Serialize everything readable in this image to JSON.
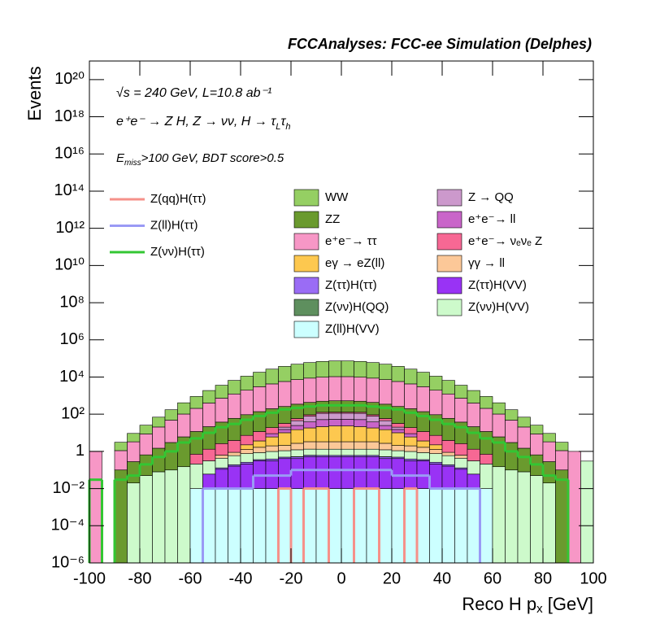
{
  "chart_data": {
    "type": "stacked_histogram",
    "title": "FCCAnalyses: FCC-ee Simulation (Delphes)",
    "lumi_text": "√s = 240 GeV, L=10.8 ab⁻¹",
    "process_text": [
      "e⁺e⁻ → Z H, Z → νν, H → τ",
      "L",
      "τ",
      "h"
    ],
    "cut_text": [
      "E",
      "miss",
      ">100 GeV, BDT score>0.5"
    ],
    "x_label": [
      "Reco H p",
      "x",
      " [GeV]"
    ],
    "y_label": "Events",
    "log_y": true,
    "grid": false,
    "xlim": [
      -100,
      100
    ],
    "xticks": [
      -100,
      -80,
      -60,
      -40,
      -20,
      0,
      20,
      40,
      60,
      80,
      100
    ],
    "ylim": [
      1e-06,
      1e+21
    ],
    "yticks": [
      {
        "value": 1e-06,
        "label": "10⁻⁶"
      },
      {
        "value": 0.0001,
        "label": "10⁻⁴"
      },
      {
        "value": 0.01,
        "label": "10⁻²"
      },
      1,
      {
        "value": 100,
        "label": "10²"
      },
      {
        "value": 10000,
        "label": "10⁴"
      },
      {
        "value": 1000000.0,
        "label": "10⁶"
      },
      {
        "value": 100000000.0,
        "label": "10⁸"
      },
      {
        "value": 10000000000.0,
        "label": "10¹⁰"
      },
      {
        "value": 1000000000000.0,
        "label": "10¹²"
      },
      {
        "value": 100000000000000.0,
        "label": "10¹⁴"
      },
      {
        "value": 1e+16,
        "label": "10¹⁶"
      },
      {
        "value": 1e+18,
        "label": "10¹⁸"
      },
      {
        "value": 1e+20,
        "label": "10²⁰"
      }
    ],
    "bins": [
      -100,
      -95,
      -90,
      -85,
      -80,
      -75,
      -70,
      -65,
      -60,
      -55,
      -50,
      -45,
      -40,
      -35,
      -30,
      -25,
      -20,
      -15,
      -10,
      -5,
      0,
      5,
      10,
      15,
      20,
      25,
      30,
      35,
      40,
      45,
      50,
      55,
      60,
      65,
      70,
      75,
      80,
      85,
      90,
      95,
      100
    ],
    "series": [
      {
        "name": "WW",
        "color": "#95cf63",
        "values": [
          0,
          0,
          2,
          6,
          17,
          49,
          126,
          309,
          692,
          1480,
          2890,
          5370,
          9120,
          15100,
          22400,
          31600,
          41700,
          51300,
          58900,
          63100,
          63100,
          58900,
          51300,
          41700,
          31600,
          22400,
          15100,
          9120,
          5370,
          2890,
          1480,
          692,
          309,
          126,
          49,
          17,
          6,
          2,
          0,
          0
        ]
      },
      {
        "name": "ZZ",
        "color": "#6a9a2e",
        "values": [
          0,
          0,
          0.1,
          0.26,
          0.6,
          1.4,
          2.9,
          5.9,
          11,
          20,
          35,
          56,
          87,
          126,
          178,
          229,
          288,
          339,
          372,
          398,
          398,
          372,
          339,
          288,
          229,
          178,
          126,
          87,
          56,
          35,
          20,
          11,
          5.9,
          2.9,
          1.4,
          0.6,
          0.26,
          0.1,
          0,
          0
        ]
      },
      {
        "name": "e⁺e⁻→ ττ",
        "color": "#f797c6",
        "values": [
          1,
          0,
          1,
          3,
          8,
          19,
          45,
          96,
          195,
          380,
          692,
          1170,
          1860,
          2880,
          4070,
          5500,
          6920,
          8320,
          9330,
          10000,
          10000,
          9330,
          8320,
          6920,
          5500,
          4070,
          2880,
          1860,
          1170,
          692,
          380,
          195,
          96,
          45,
          19,
          8,
          3,
          1,
          1,
          0
        ]
      },
      {
        "name": "eγ → eZ(ll)",
        "color": "#fdc84f",
        "values": [
          0,
          0,
          0,
          0,
          0,
          0,
          0,
          0,
          0,
          0,
          0,
          0,
          1,
          2,
          4,
          8,
          12,
          15,
          18,
          20,
          20,
          18,
          15,
          12,
          8,
          4,
          2,
          1,
          0,
          0,
          0,
          0,
          0,
          0,
          0,
          0,
          0,
          0,
          0,
          0
        ]
      },
      {
        "name": "Z(ττ)H(ττ)",
        "color": "#9a6cf5",
        "values": [
          0,
          0,
          0,
          0,
          0,
          0,
          0,
          0,
          0,
          0,
          0.02,
          0.03,
          0.05,
          0.05,
          0.08,
          0.08,
          0.1,
          0.1,
          0.1,
          0.1,
          0.1,
          0.1,
          0.1,
          0.1,
          0.08,
          0.08,
          0.05,
          0.05,
          0.03,
          0.02,
          0,
          0,
          0,
          0,
          0,
          0,
          0,
          0,
          0,
          0
        ]
      },
      {
        "name": "Z(νν)H(QQ)",
        "color": "#5e8f5e",
        "values": [
          0,
          0,
          0,
          0,
          0,
          0,
          0,
          0,
          0,
          0,
          0,
          0,
          0,
          0,
          0,
          0,
          0.01,
          0.01,
          0,
          0,
          0,
          0,
          0,
          0.01,
          0,
          0,
          0,
          0,
          0,
          0,
          0,
          0,
          0,
          0,
          0,
          0,
          0,
          0,
          0,
          0
        ]
      },
      {
        "name": "Z(ll)H(VV)",
        "color": "#ccffff",
        "values": [
          0,
          0,
          0,
          0,
          0,
          0,
          0,
          0,
          0.01,
          0.01,
          0.01,
          0.01,
          0.01,
          0.01,
          0.01,
          0.01,
          0.01,
          0.01,
          0.01,
          0.01,
          0.01,
          0.01,
          0.01,
          0.01,
          0.01,
          0.01,
          0.01,
          0.01,
          0.01,
          0.01,
          0.01,
          0.01,
          0,
          0,
          0,
          0,
          0,
          0,
          0,
          0
        ]
      },
      {
        "name": "Z → QQ",
        "color": "#cc99cc",
        "values": [
          0,
          0,
          0,
          0,
          0,
          0,
          0,
          0,
          0,
          0,
          0,
          0,
          0,
          0,
          0,
          5,
          20,
          40,
          60,
          60,
          60,
          60,
          40,
          20,
          5,
          0,
          0,
          0,
          0,
          0,
          0,
          0,
          0,
          0,
          0,
          0,
          0,
          0,
          0,
          0
        ]
      },
      {
        "name": "e⁺e⁻→ ll",
        "color": "#c965c9",
        "values": [
          0,
          0,
          0,
          0,
          0,
          0,
          0,
          0,
          0,
          0,
          0,
          0,
          0,
          0,
          3,
          5,
          10,
          20,
          30,
          30,
          30,
          30,
          20,
          10,
          5,
          3,
          0,
          0,
          0,
          0,
          0,
          0,
          0,
          0,
          0,
          0,
          0,
          0,
          0,
          0
        ]
      },
      {
        "name": "e⁺e⁻→ νₑνₑ Z",
        "color": "#f76894",
        "values": [
          0,
          0,
          0,
          0,
          0,
          0,
          0,
          0,
          0.5,
          1,
          2,
          3,
          5,
          8,
          10,
          12,
          14,
          15,
          16,
          16,
          16,
          16,
          15,
          14,
          12,
          10,
          8,
          5,
          3,
          2,
          1,
          0.5,
          0,
          0,
          0,
          0,
          0,
          0,
          0,
          0
        ]
      },
      {
        "name": "γγ → ll",
        "color": "#fcc898",
        "values": [
          0,
          0,
          0,
          0,
          0,
          0,
          0,
          0,
          0,
          0,
          0.2,
          0.3,
          0.5,
          0.8,
          1,
          1,
          1.5,
          2,
          2,
          2,
          2,
          2,
          2,
          1.5,
          1,
          1,
          0.8,
          0.5,
          0.3,
          0.2,
          0,
          0,
          0,
          0,
          0,
          0,
          0,
          0,
          0,
          0
        ]
      },
      {
        "name": "Z(ττ)H(VV)",
        "color": "#9933f5",
        "values": [
          0,
          0,
          0,
          0,
          0,
          0,
          0,
          0,
          0,
          0.05,
          0.1,
          0.15,
          0.2,
          0.3,
          0.3,
          0.4,
          0.4,
          0.5,
          0.5,
          0.5,
          0.5,
          0.5,
          0.5,
          0.4,
          0.4,
          0.3,
          0.3,
          0.2,
          0.15,
          0.1,
          0.05,
          0,
          0,
          0,
          0,
          0,
          0,
          0,
          0,
          0
        ]
      },
      {
        "name": "Z(νν)H(VV)",
        "color": "#cdfacb",
        "values": [
          0,
          0,
          0,
          0.02,
          0.05,
          0.08,
          0.1,
          0.15,
          0.2,
          0.25,
          0.3,
          0.4,
          0.5,
          0.5,
          0.6,
          0.6,
          0.7,
          0.7,
          0.7,
          0.7,
          0.7,
          0.7,
          0.7,
          0.7,
          0.6,
          0.6,
          0.5,
          0.5,
          0.4,
          0.3,
          0.25,
          0.2,
          0.15,
          0.1,
          0.08,
          0.05,
          0.02,
          0,
          0,
          0.3
        ]
      }
    ],
    "lines": [
      {
        "name": "Z(qq)H(ττ)",
        "color": "#f5918a",
        "values": [
          null,
          null,
          null,
          null,
          null,
          null,
          null,
          null,
          null,
          null,
          null,
          null,
          null,
          null,
          null,
          0.01,
          null,
          0.01,
          0.01,
          null,
          null,
          0.01,
          0.01,
          null,
          null,
          0.01,
          null,
          null,
          null,
          null,
          null,
          null,
          null,
          null,
          null,
          null,
          null,
          null,
          null,
          null
        ]
      },
      {
        "name": "Z(ll)H(ττ)",
        "color": "#9a9af5",
        "values": [
          null,
          null,
          null,
          null,
          null,
          null,
          null,
          null,
          null,
          0.01,
          0.01,
          0.01,
          0.01,
          0.05,
          0.05,
          0.05,
          0.1,
          0.1,
          0.1,
          0.1,
          0.1,
          0.1,
          0.1,
          0.1,
          0.05,
          0.05,
          0.05,
          0.01,
          0.01,
          0.01,
          0.01,
          null,
          null,
          null,
          null,
          null,
          null,
          null,
          null,
          null
        ]
      },
      {
        "name": "Z(νν)H(ττ)",
        "color": "#33c633",
        "values": [
          0.03,
          null,
          0.03,
          0.05,
          0.2,
          0.5,
          1,
          3,
          5,
          10,
          20,
          30,
          50,
          80,
          120,
          180,
          220,
          260,
          300,
          300,
          300,
          300,
          260,
          220,
          180,
          120,
          80,
          50,
          30,
          20,
          10,
          5,
          3,
          1,
          0.5,
          0.2,
          0.05,
          0.03,
          null,
          null
        ]
      }
    ]
  }
}
